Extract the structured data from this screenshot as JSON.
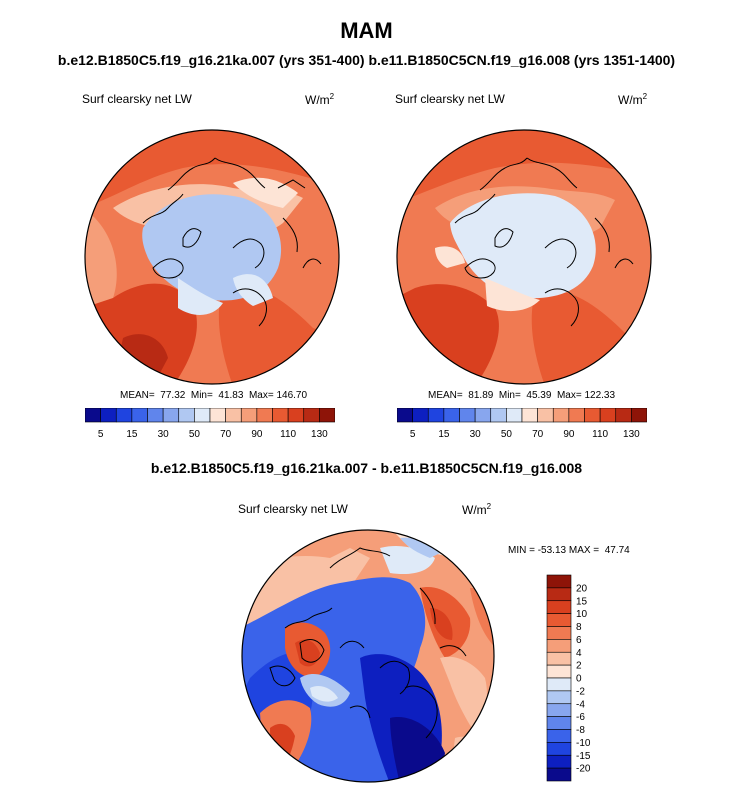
{
  "header": {
    "season": "MAM",
    "subtitle": "b.e12.B1850C5.f19_g16.21ka.007 (yrs 351-400) b.e11.B1850C5CN.f19_g16.008 (yrs 1351-1400)"
  },
  "panels": [
    {
      "variable": "Surf clearsky net LW",
      "units_base": "W/m",
      "units_exp": "2",
      "stats": "MEAN=  77.32  Min=  41.83  Max= 146.70"
    },
    {
      "variable": "Surf clearsky net LW",
      "units_base": "W/m",
      "units_exp": "2",
      "stats": "MEAN=  81.89  Min=  45.39  Max= 122.33"
    }
  ],
  "difference": {
    "title": "b.e12.B1850C5.f19_g16.21ka.007 - b.e11.B1850C5CN.f19_g16.008",
    "variable": "Surf clearsky net LW",
    "units_base": "W/m",
    "units_exp": "2",
    "stats": "MIN = -53.13 MAX =  47.74"
  },
  "colorbar_top": {
    "colors": [
      "#0a0a8c",
      "#0d1fc0",
      "#1f44e0",
      "#3a63ea",
      "#6085ec",
      "#88a6ee",
      "#b0c8f2",
      "#dfeaf8",
      "#fde4d6",
      "#f9c1a5",
      "#f59e79",
      "#f07a52",
      "#e85a32",
      "#d9401f",
      "#b82a14",
      "#8e1408"
    ],
    "tick_labels": [
      "5",
      "15",
      "30",
      "50",
      "70",
      "90",
      "110",
      "130"
    ]
  },
  "colorbar_diff": {
    "colors": [
      "#8e1408",
      "#b82a14",
      "#d9401f",
      "#e85a32",
      "#f07a52",
      "#f59e79",
      "#f9c1a5",
      "#fde4d6",
      "#dfeaf8",
      "#b0c8f2",
      "#88a6ee",
      "#6085ec",
      "#3a63ea",
      "#1f44e0",
      "#0d1fc0",
      "#0a0a8c"
    ],
    "tick_labels": [
      "20",
      "15",
      "10",
      "8",
      "6",
      "4",
      "2",
      "0",
      "-2",
      "-4",
      "-6",
      "-8",
      "-10",
      "-15",
      "-20"
    ]
  }
}
